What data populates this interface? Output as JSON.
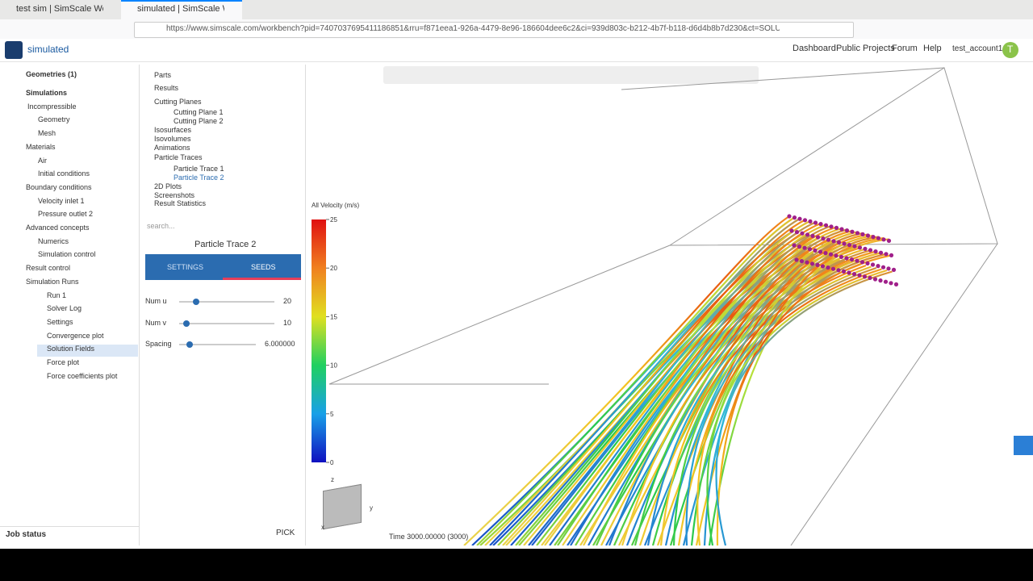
{
  "browser": {
    "tabs": [
      "test sim | SimScale Workb",
      "simulated | SimScale Wor"
    ],
    "url": "https://www.simscale.com/workbench?pid=7407037695411186851&rru=f871eea1-926a-4479-8e96-186604dee6c2&ci=939d803c-b212-4b7f-b118-d6d4b8b7d230&ct=SOLUTION_FIELD"
  },
  "header": {
    "project": "simulated",
    "nav": [
      "Dashboard",
      "Public Projects",
      "Forum",
      "Help"
    ],
    "user": "test_account1",
    "avatar": "T"
  },
  "sidebar": {
    "items": [
      "Geometries (1)",
      "Simulations",
      "Incompressible",
      "Geometry",
      "Mesh",
      "Materials",
      "Air",
      "Initial conditions",
      "Boundary conditions",
      "Velocity inlet 1",
      "Pressure outlet 2",
      "Advanced concepts",
      "Numerics",
      "Simulation control",
      "Result control",
      "Simulation Runs",
      "Run 1",
      "Solver Log",
      "Settings",
      "Convergence plot",
      "Solution Fields",
      "Force plot",
      "Force coefficients plot"
    ],
    "footer": "Job status"
  },
  "panel": {
    "tree": [
      "Parts",
      "Results",
      "Cutting Planes",
      "Cutting Plane 1",
      "Cutting Plane 2",
      "Isosurfaces",
      "Isovolumes",
      "Animations",
      "Particle Traces",
      "Particle Trace 1",
      "Particle Trace 2",
      "2D Plots",
      "Screenshots",
      "Result Statistics"
    ],
    "search": "search...",
    "title": "Particle Trace 2",
    "tabs": [
      "SETTINGS",
      "SEEDS"
    ],
    "sliders": [
      {
        "label": "Num u",
        "value": "20"
      },
      {
        "label": "Num v",
        "value": "10"
      },
      {
        "label": "Spacing",
        "value": "6.000000"
      }
    ],
    "pick": "PICK"
  },
  "viewer": {
    "legend": {
      "title": "All Velocity (m/s)",
      "range": [
        0,
        25
      ],
      "ticks": [
        0,
        5,
        10,
        15,
        20,
        25
      ]
    },
    "axes": [
      "z",
      "y",
      "x"
    ],
    "time": "Time 3000.00000 (3000)"
  }
}
